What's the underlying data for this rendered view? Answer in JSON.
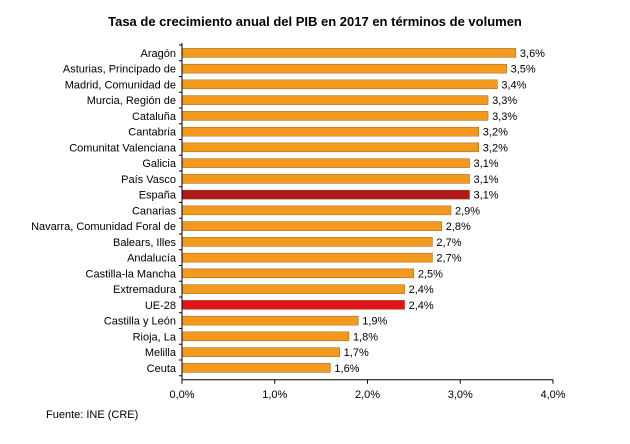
{
  "chart_data": {
    "type": "bar",
    "orientation": "horizontal",
    "title": "Tasa de crecimiento anual del PIB en 2017 en términos de volumen",
    "categories": [
      "Aragón",
      "Asturias, Principado de",
      "Madrid, Comunidad de",
      "Murcia, Región de",
      "Cataluña",
      "Cantabria",
      "Comunitat Valenciana",
      "Galicia",
      "País Vasco",
      "España",
      "Canarias",
      "Navarra, Comunidad Foral de",
      "Balears, Illes",
      "Andalucía",
      "Castilla-la Mancha",
      "Extremadura",
      "UE-28",
      "Castilla y León",
      "Rioja, La",
      "Melilla",
      "Ceuta"
    ],
    "values": [
      3.6,
      3.5,
      3.4,
      3.3,
      3.3,
      3.2,
      3.2,
      3.1,
      3.1,
      3.1,
      2.9,
      2.8,
      2.7,
      2.7,
      2.5,
      2.4,
      2.4,
      1.9,
      1.8,
      1.7,
      1.6
    ],
    "value_labels": [
      "3,6%",
      "3,5%",
      "3,4%",
      "3,3%",
      "3,3%",
      "3,2%",
      "3,2%",
      "3,1%",
      "3,1%",
      "3,1%",
      "2,9%",
      "2,8%",
      "2,7%",
      "2,7%",
      "2,5%",
      "2,4%",
      "2,4%",
      "1,9%",
      "1,8%",
      "1,7%",
      "1,6%"
    ],
    "xlim": [
      0,
      4
    ],
    "x_ticks": [
      0,
      1,
      2,
      3,
      4
    ],
    "x_tick_labels": [
      "0,0%",
      "1,0%",
      "2,0%",
      "3,0%",
      "4,0%"
    ],
    "grid": false,
    "colors": {
      "default": "#f39a1e",
      "highlight": {
        "España": "#b0181c",
        "UE-28": "#e3141c"
      }
    }
  },
  "source": "Fuente: INE (CRE)"
}
